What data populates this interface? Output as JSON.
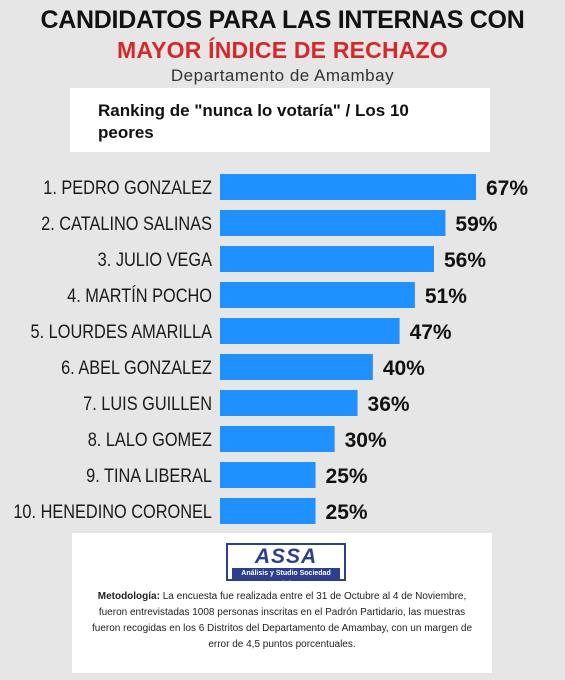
{
  "header": {
    "line1": "CANDIDATOS PARA LAS INTERNAS CON",
    "line2": "MAYOR ÍNDICE DE RECHAZO",
    "line3": "Departamento de Amambay",
    "line2_color": "#d62828"
  },
  "subtitle": "Ranking de \"nunca lo votaría\" / Los 10  peores",
  "chart_data": {
    "type": "bar",
    "orientation": "horizontal",
    "categories": [
      "1. PEDRO GONZALEZ",
      "2. CATALINO SALINAS",
      "3. JULIO VEGA",
      "4. MARTÍN POCHO",
      "5. LOURDES AMARILLA",
      "6. ABEL GONZALEZ",
      "7. LUIS GUILLEN",
      "8. LALO GOMEZ",
      "9. TINA LIBERAL",
      "10. HENEDINO CORONEL"
    ],
    "values": [
      67,
      59,
      56,
      51,
      47,
      40,
      36,
      30,
      25,
      25
    ],
    "value_labels": [
      "67%",
      "59%",
      "56%",
      "51%",
      "47%",
      "40%",
      "36%",
      "30%",
      "25%",
      "25%"
    ],
    "bar_color": "#1e90ff",
    "xlim": [
      0,
      100
    ],
    "grid": false
  },
  "footer": {
    "logo_text": "ASSA",
    "logo_subtext": "Análisis y Studio Sociedad Anónima",
    "logo_color": "#2a3f8f",
    "methodology_label": "Metodología:",
    "methodology_text": "La encuesta fue realizada entre el 31 de Octubre al 4 de Noviembre, fueron entrevistadas 1008 personas inscritas en el Padrón Partidario, las muestras fueron recogidas en los 6 Distritos del Departamento de Amambay, con un margen de error de 4,5 puntos porcentuales."
  }
}
